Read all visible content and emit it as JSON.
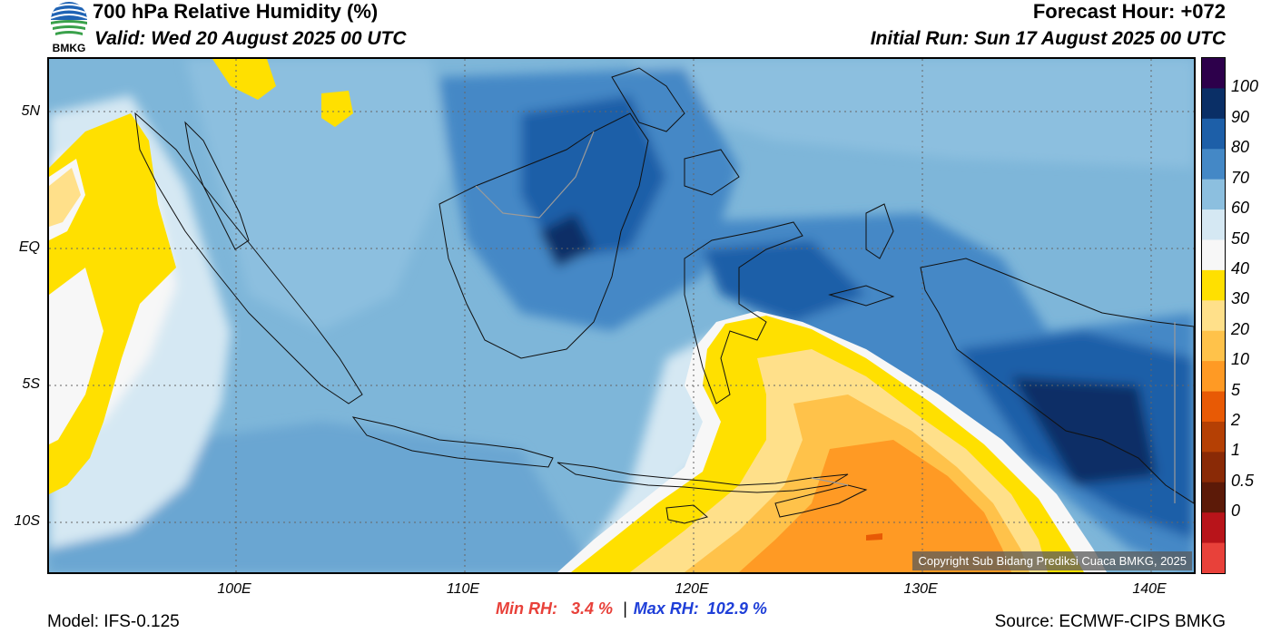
{
  "header": {
    "title": "700 hPa Relative Humidity (%)",
    "valid": "Valid: Wed 20 August 2025 00 UTC",
    "forecast_hour": "Forecast Hour: +072",
    "initial_run": "Initial Run: Sun 17 August 2025 00 UTC"
  },
  "logo": {
    "text": "BMKG",
    "icon": "bmkg-logo-icon"
  },
  "axes": {
    "lat_ticks": [
      "5N",
      "EQ",
      "5S",
      "10S"
    ],
    "lon_ticks": [
      "100E",
      "110E",
      "120E",
      "130E",
      "140E"
    ]
  },
  "colorbar": {
    "labels": [
      "100",
      "90",
      "80",
      "70",
      "60",
      "50",
      "40",
      "30",
      "20",
      "10",
      "5",
      "2",
      "1",
      "0.5",
      "0"
    ],
    "colors": [
      "#2d004b",
      "#0a2f66",
      "#1d5fa8",
      "#4488c6",
      "#8cbfdf",
      "#d5e8f3",
      "#f7f7f7",
      "#ffe000",
      "#ffe08a",
      "#ffc24a",
      "#ff9a24",
      "#e85a05",
      "#b54004",
      "#8a2a06",
      "#5c1a08",
      "#b8141a",
      "#e8413a"
    ]
  },
  "stats": {
    "min_label": "Min RH:",
    "min_value": "3.4 %",
    "separator": "|",
    "max_label": "Max RH:",
    "max_value": "102.9 %"
  },
  "footer": {
    "model": "Model: IFS-0.125",
    "source": "Source: ECMWF-CIPS BMKG",
    "copyright": "Copyright Sub Bidang Prediksi Cuaca BMKG, 2025"
  }
}
